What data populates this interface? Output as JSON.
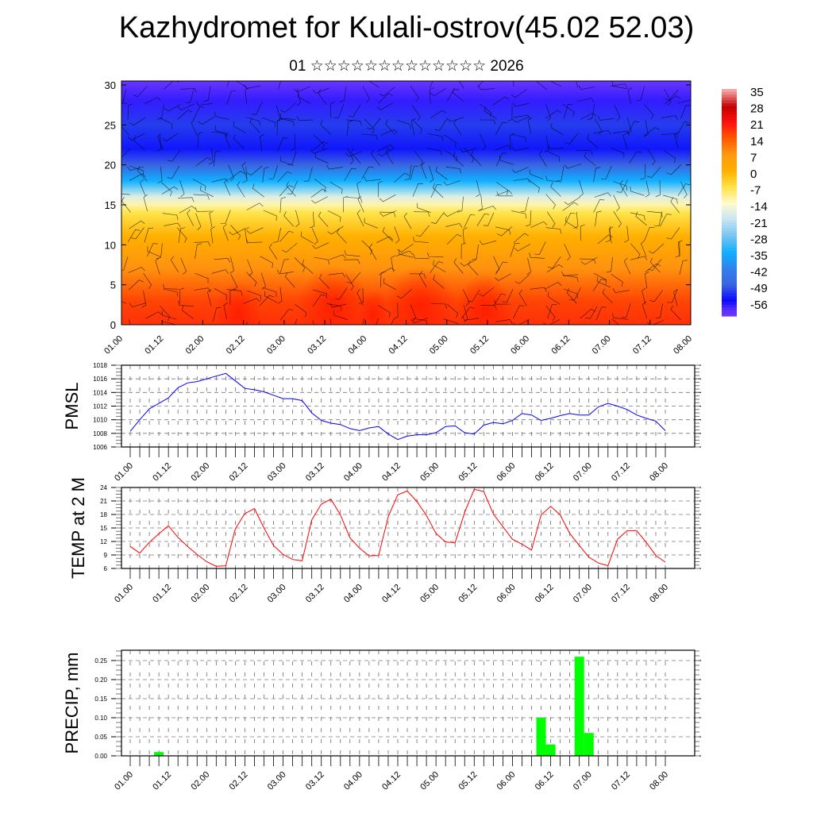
{
  "header": {
    "title": "Kazhydromet for Kulali-ostrov(45.02 52.03)",
    "subtitle": "01 ☆☆☆☆☆☆☆☆☆☆☆☆☆ 2026"
  },
  "chart_data": [
    {
      "type": "heatmap",
      "name": "vertical temperature and wind cross-section",
      "ylabel": "",
      "ylim": [
        0,
        30.5
      ],
      "yticks": [
        "0",
        "5",
        "10",
        "15",
        "20",
        "25",
        "30"
      ],
      "xticks": [
        "01.00",
        "01.12",
        "02.00",
        "02.12",
        "03.00",
        "03.12",
        "04.00",
        "04.12",
        "05.00",
        "05.12",
        "06.00",
        "06.12",
        "07.00",
        "07.12",
        "08.00"
      ],
      "colorbar": {
        "labels": [
          "35",
          "28",
          "21",
          "14",
          "7",
          "0",
          "-7",
          "-14",
          "-21",
          "-28",
          "-35",
          "-42",
          "-49",
          "-56"
        ],
        "colors": [
          "#f4a6a6",
          "#c40000",
          "#ff1010",
          "#ff5a00",
          "#ff9a10",
          "#ffb000",
          "#ffe44a",
          "#fffbd0",
          "#c6e4f4",
          "#78c4f0",
          "#10b0ff",
          "#2f82ee",
          "#3a64e0",
          "#0a0aff",
          "#5a30ff",
          "#8a40ff"
        ]
      },
      "profile": {
        "heights": [
          0,
          3,
          7,
          11,
          14,
          15,
          16,
          18,
          20,
          22,
          25,
          28,
          30.5
        ],
        "temps": [
          18,
          16,
          8,
          0,
          -7,
          -12,
          -18,
          -35,
          -49,
          -55,
          -52,
          -58,
          -62
        ]
      }
    },
    {
      "type": "line",
      "ylabel": "PMSL",
      "ylim": [
        1006,
        1018
      ],
      "yticks": [
        "1006",
        "1008",
        "1010",
        "1012",
        "1014",
        "1016",
        "1018"
      ],
      "xticks": [
        "01.00",
        "01.12",
        "02.00",
        "02.12",
        "03.00",
        "03.12",
        "04.00",
        "04.12",
        "05.00",
        "05.12",
        "06.00",
        "06.12",
        "07.00",
        "07.12",
        "08.00"
      ],
      "color": "#0000ff",
      "values": [
        1008.3,
        1010.0,
        1011.6,
        1012.4,
        1013.2,
        1014.7,
        1015.4,
        1015.6,
        1016.0,
        1016.4,
        1016.8,
        1015.7,
        1014.6,
        1014.4,
        1014.1,
        1013.6,
        1013.1,
        1013.1,
        1012.8,
        1011.0,
        1009.9,
        1009.5,
        1009.3,
        1008.7,
        1008.4,
        1008.8,
        1009.0,
        1007.9,
        1007.1,
        1007.6,
        1007.8,
        1007.8,
        1008.1,
        1009.0,
        1009.1,
        1008.1,
        1007.9,
        1009.2,
        1009.6,
        1009.4,
        1009.9,
        1010.9,
        1010.7,
        1009.9,
        1010.2,
        1010.6,
        1010.9,
        1010.7,
        1010.7,
        1011.9,
        1012.4,
        1012.0,
        1011.5,
        1010.7,
        1010.2,
        1009.8,
        1008.4
      ]
    },
    {
      "type": "line",
      "ylabel": "TEMP at 2 M",
      "ylim": [
        6,
        24
      ],
      "yticks": [
        "6",
        "9",
        "12",
        "15",
        "18",
        "21",
        "24"
      ],
      "xticks": [
        "01.00",
        "01.12",
        "02.00",
        "02.12",
        "03.00",
        "03.12",
        "04.00",
        "04.12",
        "05.00",
        "05.12",
        "06.00",
        "06.12",
        "07.00",
        "07.12",
        "08.00"
      ],
      "color": "#ff0000",
      "values": [
        10.9,
        9.4,
        11.8,
        13.7,
        15.5,
        12.9,
        10.9,
        9.1,
        7.5,
        6.5,
        6.6,
        14.8,
        18.2,
        19.3,
        15.0,
        11.1,
        9.1,
        8.0,
        7.7,
        16.8,
        20.3,
        21.4,
        17.9,
        12.8,
        10.5,
        8.8,
        8.9,
        17.5,
        22.4,
        23.2,
        20.9,
        17.8,
        13.8,
        11.9,
        11.7,
        18.5,
        23.6,
        23.1,
        18.1,
        15.3,
        12.5,
        11.4,
        10.1,
        17.9,
        19.8,
        17.9,
        13.8,
        11.1,
        8.5,
        7.2,
        6.6,
        12.5,
        14.4,
        14.4,
        11.8,
        8.9,
        7.4
      ]
    },
    {
      "type": "bar",
      "ylabel": "PRECIP, mm",
      "ylim": [
        0,
        0.277
      ],
      "yticks": [
        "0.00",
        "0.05",
        "0.10",
        "0.15",
        "0.20",
        "0.25"
      ],
      "xticks": [
        "01.00",
        "01.12",
        "02.00",
        "02.12",
        "03.00",
        "03.12",
        "04.00",
        "04.12",
        "05.00",
        "05.12",
        "06.00",
        "06.12",
        "07.00",
        "07.12",
        "08.00"
      ],
      "color": "#00ff00",
      "bars": [
        {
          "step": 3,
          "value": 0.01
        },
        {
          "step": 43,
          "value": 0.1
        },
        {
          "step": 44,
          "value": 0.03
        },
        {
          "step": 47,
          "value": 0.26
        },
        {
          "step": 48,
          "value": 0.06
        }
      ]
    }
  ]
}
